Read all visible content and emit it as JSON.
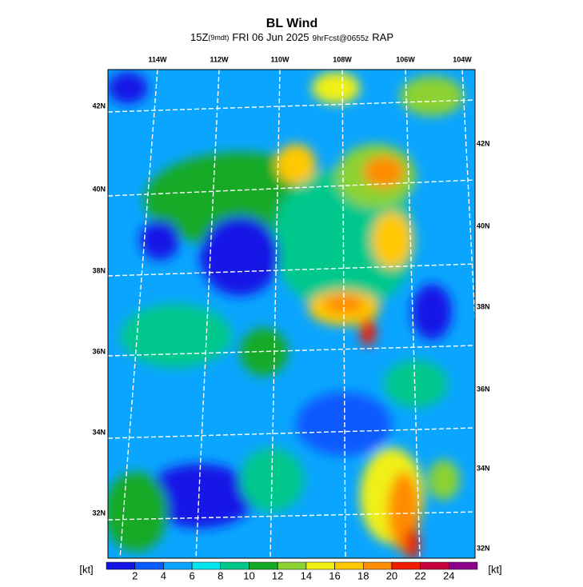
{
  "header": {
    "title": "BL Wind",
    "valid": "15Z",
    "local": "(9mdt)",
    "date": "FRI 06 Jun 2025",
    "forecast": "9hrFcst@0655z",
    "model": "RAP"
  },
  "map": {
    "top_labels": [
      "114W",
      "112W",
      "110W",
      "108W",
      "106W",
      "104W"
    ],
    "left_labels": [
      "42N",
      "40N",
      "38N",
      "36N",
      "34N",
      "32N"
    ],
    "right_labels": [
      "42N",
      "40N",
      "38N",
      "36N",
      "34N",
      "32N"
    ]
  },
  "colorbar": {
    "unit_left": "[kt]",
    "unit_right": "[kt]",
    "ticks": [
      2,
      4,
      6,
      8,
      10,
      12,
      14,
      16,
      18,
      20,
      22,
      24
    ],
    "colors": [
      "#1414e6",
      "#0a5aff",
      "#0aa5ff",
      "#00e6f0",
      "#00c88c",
      "#14aa28",
      "#8cd232",
      "#f0f014",
      "#ffc800",
      "#ff8c00",
      "#f01e00",
      "#c8003c",
      "#8c008c"
    ]
  }
}
